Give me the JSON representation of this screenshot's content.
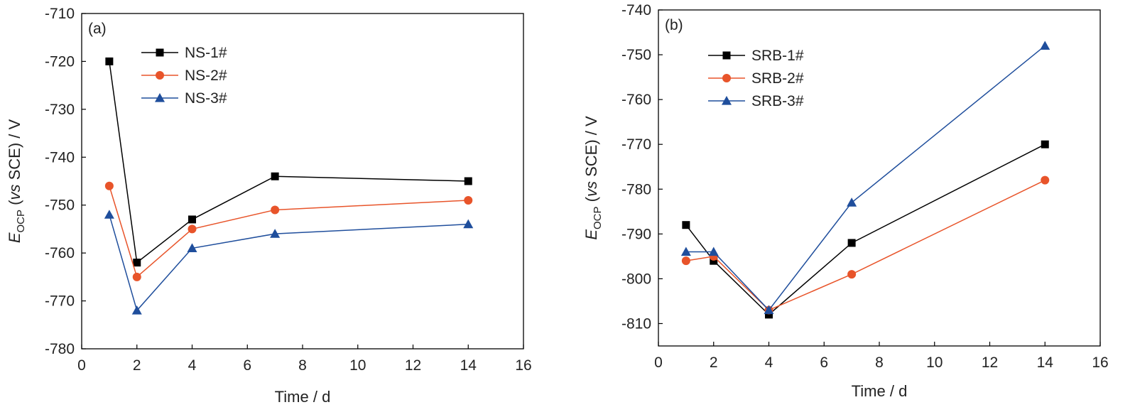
{
  "chart_data": [
    {
      "type": "line",
      "panel_label": "(a)",
      "xlabel": "Time / d",
      "ylabel": {
        "symbol": "E",
        "subscript": "OCP",
        "open": " (",
        "italic": "vs",
        "rest": " SCE) / V"
      },
      "xlim": [
        0,
        16
      ],
      "ylim": [
        -780,
        -710
      ],
      "xticks": [
        0,
        2,
        4,
        6,
        8,
        10,
        12,
        14,
        16
      ],
      "yticks": [
        -710,
        -720,
        -730,
        -740,
        -750,
        -760,
        -770,
        -780
      ],
      "grid": false,
      "legend_position": "top-left",
      "x": [
        1,
        2,
        4,
        7,
        14
      ],
      "series": [
        {
          "name": "NS-1#",
          "color": "#000000",
          "marker": "square",
          "values": [
            -720,
            -762,
            -753,
            -744,
            -745
          ]
        },
        {
          "name": "NS-2#",
          "color": "#E8542A",
          "marker": "circle",
          "values": [
            -746,
            -765,
            -755,
            -751,
            -749
          ]
        },
        {
          "name": "NS-3#",
          "color": "#1F4E9C",
          "marker": "triangle",
          "values": [
            -752,
            -772,
            -759,
            -756,
            -754
          ]
        }
      ]
    },
    {
      "type": "line",
      "panel_label": "(b)",
      "xlabel": "Time / d",
      "ylabel": {
        "symbol": "E",
        "subscript": "OCP",
        "open": " (",
        "italic": "vs",
        "rest": " SCE) / V"
      },
      "xlim": [
        0,
        16
      ],
      "ylim": [
        -815,
        -740
      ],
      "xticks": [
        0,
        2,
        4,
        6,
        8,
        10,
        12,
        14,
        16
      ],
      "yticks": [
        -740,
        -750,
        -760,
        -770,
        -780,
        -790,
        -800,
        -810
      ],
      "grid": false,
      "legend_position": "top-left",
      "x": [
        1,
        2,
        4,
        7,
        14
      ],
      "series": [
        {
          "name": "SRB-1#",
          "color": "#000000",
          "marker": "square",
          "values": [
            -788,
            -796,
            -808,
            -792,
            -770
          ]
        },
        {
          "name": "SRB-2#",
          "color": "#E8542A",
          "marker": "circle",
          "values": [
            -796,
            -795,
            -807,
            -799,
            -778
          ]
        },
        {
          "name": "SRB-3#",
          "color": "#1F4E9C",
          "marker": "triangle",
          "values": [
            -794,
            -794,
            -807,
            -783,
            -748
          ]
        }
      ]
    }
  ]
}
